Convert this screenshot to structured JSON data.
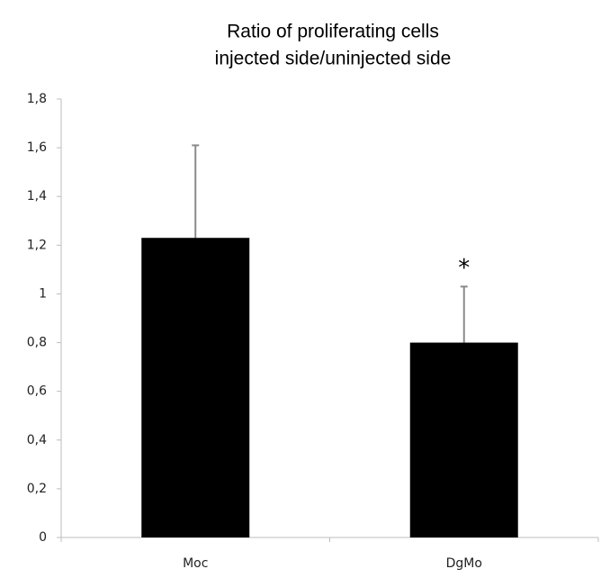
{
  "chart_data": {
    "type": "bar",
    "title": [
      "Ratio of proliferating cells",
      "injected side/uninjected side"
    ],
    "categories": [
      "Moc",
      "DgMo"
    ],
    "values": [
      1.23,
      0.8
    ],
    "errors": [
      0.38,
      0.23
    ],
    "color": "#000000",
    "error_color": "#8a8a8a",
    "annotations": [
      "*"
    ],
    "ylim": [
      0,
      1.8
    ],
    "yticks": [
      0,
      {
        "value": 0.2,
        "label": "0,2"
      },
      {
        "value": 0.4,
        "label": "0,4"
      },
      {
        "value": 0.6,
        "label": "0,6"
      },
      {
        "value": 0.8,
        "label": "0,8"
      },
      1,
      {
        "value": 1.2,
        "label": "1,2"
      },
      {
        "value": 1.4,
        "label": "1,4"
      },
      {
        "value": 1.6,
        "label": "1,6"
      },
      {
        "value": 1.8,
        "label": "1,8"
      }
    ],
    "grid": false
  }
}
